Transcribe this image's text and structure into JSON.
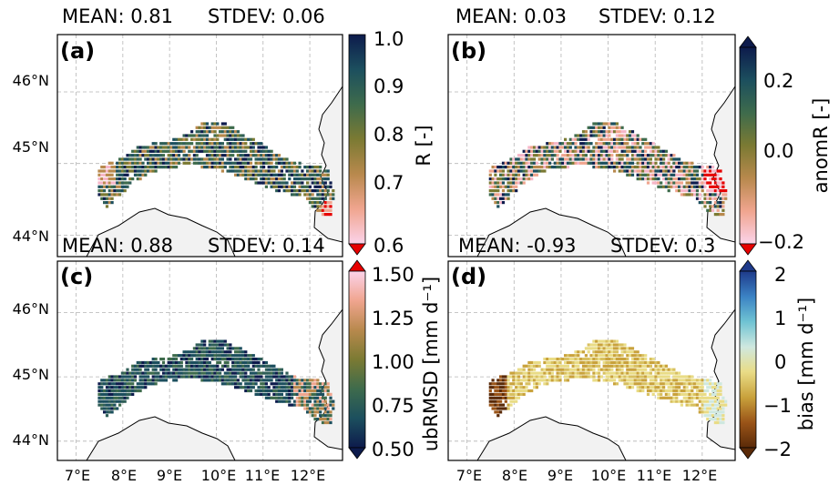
{
  "panels": [
    {
      "id": "a",
      "label": "(a)",
      "mean_label": "MEAN: 0.81",
      "stdev_label": "STDEV: 0.06",
      "colorbar": {
        "label": "R [-]",
        "ticks": [
          "1.0",
          "0.9",
          "0.8",
          "0.7",
          "0.6"
        ],
        "tick_values": [
          1.0,
          0.9,
          0.8,
          0.7,
          0.6
        ],
        "range": [
          0.6,
          1.0
        ],
        "extend": "min",
        "palette": "batlow-like",
        "colors": [
          "#0d1b4c",
          "#1c4f5e",
          "#3e6b4c",
          "#7b7a33",
          "#b8894d",
          "#f0a58f",
          "#fbd3ea"
        ]
      },
      "show_lat_labels": true,
      "show_lon_labels": false
    },
    {
      "id": "b",
      "label": "(b)",
      "mean_label": "MEAN: 0.03",
      "stdev_label": "STDEV: 0.12",
      "colorbar": {
        "label": "anomR [-]",
        "ticks": [
          "0.2",
          "0.0",
          "−0.2"
        ],
        "tick_values": [
          0.2,
          0.0,
          -0.2
        ],
        "range": [
          -0.25,
          0.3
        ],
        "extend": "both",
        "palette": "batlow-like",
        "colors": [
          "#0d1b4c",
          "#1c4f5e",
          "#3e6b4c",
          "#7b7a33",
          "#b8894d",
          "#f0a58f",
          "#fbd3ea"
        ]
      },
      "show_lat_labels": false,
      "show_lon_labels": false
    },
    {
      "id": "c",
      "label": "(c)",
      "mean_label": "MEAN: 0.88",
      "stdev_label": "STDEV: 0.14",
      "colorbar": {
        "label": "ubRMSD [mm d⁻¹]",
        "ticks": [
          "1.50",
          "1.25",
          "1.00",
          "0.75",
          "0.50"
        ],
        "tick_values": [
          1.5,
          1.25,
          1.0,
          0.75,
          0.5
        ],
        "range": [
          0.5,
          1.55
        ],
        "extend": "both",
        "palette": "batlow-reversed",
        "colors": [
          "#fbd3ea",
          "#f0a58f",
          "#b8894d",
          "#7b7a33",
          "#3e6b4c",
          "#1c4f5e",
          "#0d1b4c"
        ]
      },
      "show_lat_labels": true,
      "show_lon_labels": true
    },
    {
      "id": "d",
      "label": "(d)",
      "mean_label": "MEAN: -0.93",
      "stdev_label": "STDEV: 0.3",
      "colorbar": {
        "label": "bias [mm d⁻¹]",
        "ticks": [
          "2",
          "1",
          "0",
          "−1",
          "−2"
        ],
        "tick_values": [
          2,
          1,
          0,
          -1,
          -2
        ],
        "range": [
          -2,
          2
        ],
        "extend": "both",
        "palette": "brown-blue",
        "colors": [
          "#1e3a8a",
          "#3b82c4",
          "#6fc3d3",
          "#cfe8df",
          "#e9dc86",
          "#c9a23c",
          "#9a5418",
          "#5a2a08"
        ]
      },
      "show_lat_labels": false,
      "show_lon_labels": true
    }
  ],
  "lat_labels": [
    {
      "text": "46°N",
      "value": 46
    },
    {
      "text": "45°N",
      "value": 45
    },
    {
      "text": "44°N",
      "value": 44
    }
  ],
  "lon_labels": [
    {
      "text": "7°E",
      "value": 7
    },
    {
      "text": "8°E",
      "value": 8
    },
    {
      "text": "9°E",
      "value": 9
    },
    {
      "text": "10°E",
      "value": 10
    },
    {
      "text": "11°E",
      "value": 11
    },
    {
      "text": "12°E",
      "value": 12
    }
  ],
  "map_extent": {
    "lon": [
      6.6,
      12.7
    ],
    "lat": [
      43.7,
      46.8
    ]
  },
  "colors": {
    "land_mask": "#f2f2f2",
    "grid": "#b5b5b5",
    "coast": "#000000",
    "extend_low_a": "#e60000",
    "extend_high_c": "#e60000"
  }
}
